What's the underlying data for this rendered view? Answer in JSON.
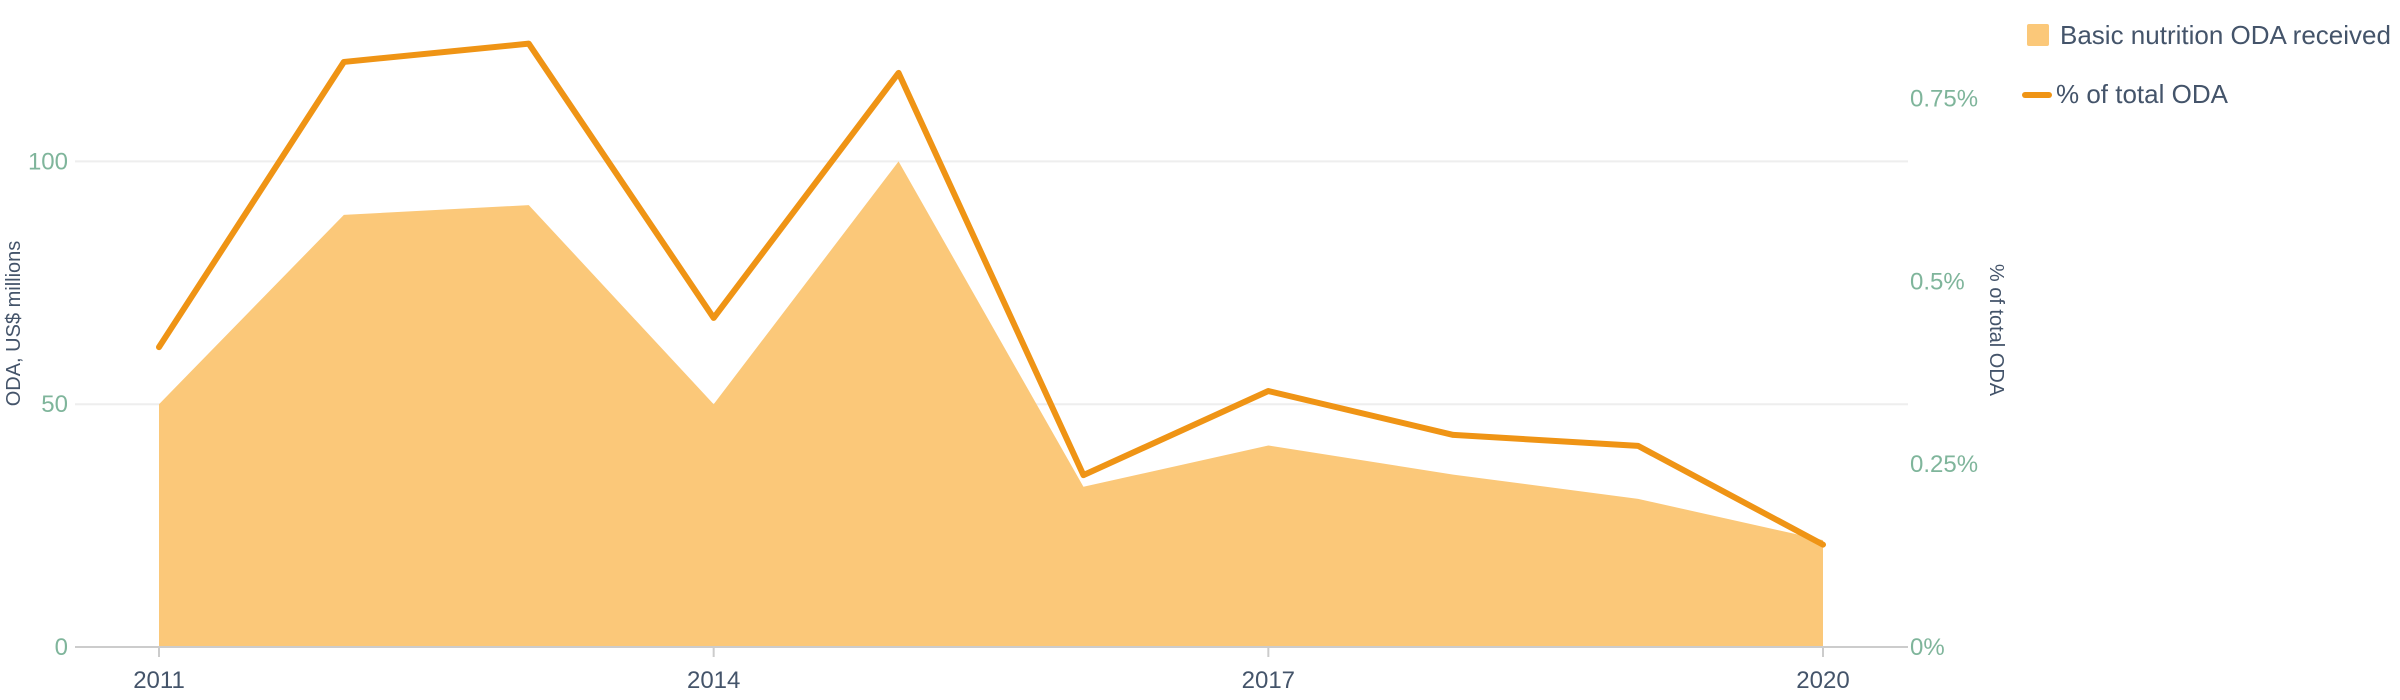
{
  "chart_data": {
    "type": "area",
    "x": [
      2011,
      2012,
      2013,
      2014,
      2015,
      2016,
      2017,
      2018,
      2019,
      2020
    ],
    "series": [
      {
        "name": "Basic nutrition ODA received",
        "type": "area",
        "axis": "left",
        "color": "#fbc879",
        "values": [
          50,
          89,
          91,
          50,
          100,
          33,
          41.5,
          35.5,
          30.5,
          22
        ]
      },
      {
        "name": "% of total ODA",
        "type": "line",
        "axis": "right",
        "color": "#ef9415",
        "values": [
          0.41,
          0.8,
          0.825,
          0.45,
          0.785,
          0.235,
          0.35,
          0.29,
          0.275,
          0.14
        ]
      }
    ],
    "y_left": {
      "label": "ODA, US$ millions",
      "range": [
        0,
        125
      ],
      "ticks": [
        0,
        50,
        100
      ],
      "tick_labels": [
        "0",
        "50",
        "100"
      ]
    },
    "y_right": {
      "label": "% of total ODA",
      "range": [
        0,
        0.83
      ],
      "ticks": [
        0,
        0.25,
        0.5,
        0.75
      ],
      "tick_labels": [
        "0%",
        "0.25%",
        "0.5%",
        "0.75%"
      ]
    },
    "x_axis": {
      "ticks": [
        2011,
        2014,
        2017,
        2020
      ],
      "tick_labels": [
        "2011",
        "2014",
        "2017",
        "2020"
      ]
    },
    "grid": true,
    "legend": {
      "placement": "top-right",
      "entries": [
        {
          "label": "Basic nutrition ODA received",
          "marker": "square"
        },
        {
          "label": "% of total ODA",
          "marker": "line"
        }
      ]
    },
    "colors": {
      "grid": "#eeeeee",
      "axis_line": "#cccccc",
      "tick_left": "#7fb59b",
      "tick_right": "#7fb59b",
      "tick_x": "#44546a",
      "text": "#44546a"
    }
  }
}
